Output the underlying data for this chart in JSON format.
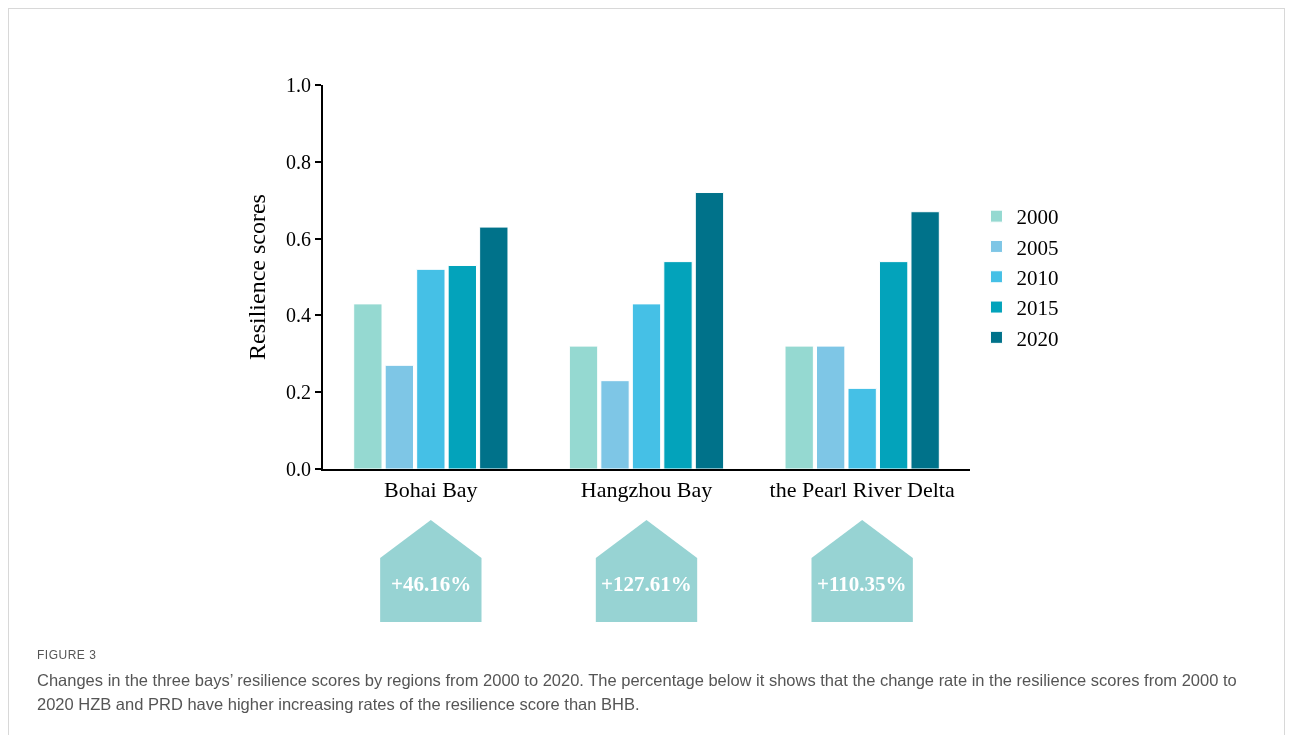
{
  "chart_data": {
    "type": "bar",
    "ylabel": "Resilience scores",
    "categories": [
      "Bohai Bay",
      "Hangzhou Bay",
      "the Pearl River Delta"
    ],
    "series": [
      {
        "name": "2000",
        "color": "#95d9d1",
        "values": [
          0.43,
          0.32,
          0.32
        ]
      },
      {
        "name": "2005",
        "color": "#7ec6e6",
        "values": [
          0.27,
          0.23,
          0.32
        ]
      },
      {
        "name": "2010",
        "color": "#45c0e6",
        "values": [
          0.52,
          0.43,
          0.21
        ]
      },
      {
        "name": "2015",
        "color": "#03a3bb",
        "values": [
          0.53,
          0.54,
          0.54
        ]
      },
      {
        "name": "2020",
        "color": "#00728a",
        "values": [
          0.63,
          0.72,
          0.67
        ]
      }
    ],
    "ylim": [
      0,
      1.0
    ],
    "yticks": [
      {
        "value": 0,
        "label": "0.0"
      },
      0.2,
      0.4,
      0.6,
      0.8,
      {
        "value": 1,
        "label": "1.0"
      }
    ],
    "grid": false,
    "legend": "right",
    "annotations": [
      "+46.16%",
      "+127.61%",
      "+110.35%",
      "FIGURE 3",
      "Changes in the three bays’ resilience scores by regions from 2000 to 2020. The percentage below it shows that the change rate in the resilience scores from 2000 to 2020 HZB and PRD have higher increasing rates of the resilience score than BHB."
    ]
  }
}
